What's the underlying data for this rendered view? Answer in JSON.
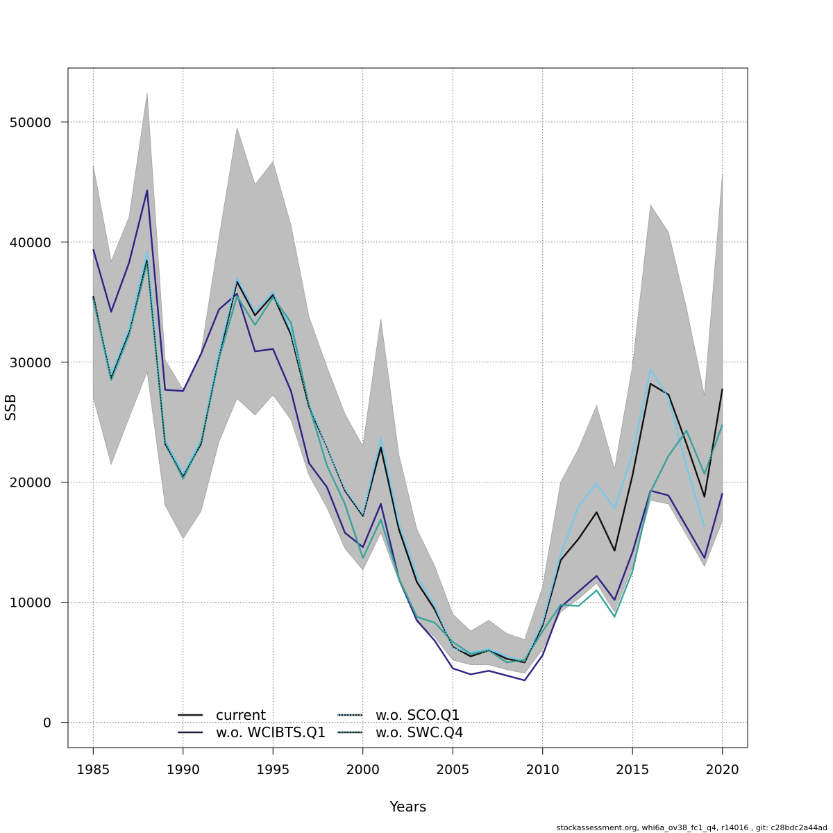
{
  "chart_data": {
    "type": "line",
    "title": "",
    "xlabel": "Years",
    "ylabel": "SSB",
    "xlim": [
      1983.6,
      2021.4
    ],
    "ylim": [
      -2100,
      54500
    ],
    "xticks": [
      1985,
      1990,
      1995,
      2000,
      2005,
      2010,
      2015,
      2020
    ],
    "yticks": [
      0,
      10000,
      20000,
      30000,
      40000,
      50000
    ],
    "grid": true,
    "legend_position": "bottom-center",
    "x": [
      1985,
      1986,
      1987,
      1988,
      1989,
      1990,
      1991,
      1992,
      1993,
      1994,
      1995,
      1996,
      1997,
      1998,
      1999,
      2000,
      2001,
      2002,
      2003,
      2004,
      2005,
      2006,
      2007,
      2008,
      2009,
      2010,
      2011,
      2012,
      2013,
      2014,
      2015,
      2016,
      2017,
      2018,
      2019,
      2020
    ],
    "band": {
      "color": "#bebebe",
      "upper": [
        46400,
        38400,
        42100,
        52400,
        30200,
        27700,
        30800,
        40400,
        49500,
        44800,
        46700,
        41400,
        33800,
        29600,
        25700,
        23000,
        33600,
        22300,
        16100,
        13000,
        9000,
        7600,
        8500,
        7400,
        6900,
        11300,
        20000,
        22800,
        26400,
        21100,
        29700,
        43100,
        40800,
        34500,
        27200,
        45700
      ],
      "lower": [
        27100,
        21500,
        25400,
        29200,
        18100,
        15300,
        17600,
        23400,
        27000,
        25600,
        27300,
        25200,
        20600,
        17900,
        14500,
        12700,
        15800,
        11800,
        8400,
        7100,
        5200,
        4800,
        4800,
        4400,
        4100,
        6100,
        9200,
        10300,
        11600,
        9200,
        13000,
        18500,
        18200,
        15600,
        13000,
        16800
      ]
    },
    "series": [
      {
        "name": "current",
        "color": "#1a1a1a",
        "dash": "",
        "width": 2.4,
        "values": [
          35500,
          28700,
          32500,
          38500,
          23200,
          20500,
          23200,
          30500,
          36700,
          33900,
          35600,
          32300,
          26300,
          22900,
          19300,
          17200,
          22900,
          16100,
          11700,
          9400,
          6300,
          5500,
          6000,
          5300,
          5000,
          8100,
          13500,
          15300,
          17500,
          14300,
          20600,
          28200,
          27300,
          23200,
          18800,
          27800
        ]
      },
      {
        "name": "w.o. WCIBTS.Q1",
        "color": "#2d2484",
        "dash": "",
        "width": 2.4,
        "values": [
          39400,
          34200,
          38300,
          44300,
          27700,
          27600,
          30700,
          34400,
          35700,
          30900,
          31100,
          27600,
          21600,
          19600,
          15800,
          14600,
          18200,
          12000,
          8500,
          6800,
          4500,
          4000,
          4300,
          3900,
          3500,
          5600,
          9600,
          10900,
          12200,
          10200,
          14200,
          19300,
          18900,
          16300,
          13700,
          19100
        ]
      },
      {
        "name": "w.o. SCO.Q1",
        "color": "#78c8e8",
        "dash": "",
        "width": 2.4,
        "values": [
          35300,
          29000,
          32800,
          39200,
          23500,
          20700,
          23500,
          30800,
          37000,
          34200,
          35900,
          32600,
          26500,
          22900,
          19400,
          17300,
          23700,
          16600,
          12200,
          9700,
          6200,
          5800,
          6100,
          5500,
          5100,
          8300,
          14000,
          18000,
          19900,
          17800,
          22400,
          29400,
          27000,
          21300,
          16300,
          null
        ]
      },
      {
        "name": "w.o. SWC.Q4",
        "color": "#3aa39a",
        "dash": "",
        "width": 2.4,
        "values": [
          35300,
          28500,
          32300,
          38300,
          23300,
          20300,
          23300,
          30300,
          35500,
          33100,
          35400,
          33300,
          26400,
          21400,
          18200,
          13700,
          16900,
          12000,
          8800,
          8300,
          6700,
          5700,
          6000,
          5000,
          5200,
          7600,
          9800,
          9700,
          11000,
          8800,
          12600,
          19200,
          22200,
          24300,
          20700,
          24800
        ]
      }
    ],
    "legend": [
      {
        "label": "current",
        "color": "#1a1a1a",
        "dot_color": "#1a1a1a"
      },
      {
        "label": "w.o. WCIBTS.Q1",
        "color": "#1a1a1a",
        "dot_color": "#2d2484"
      },
      {
        "label": "w.o. SCO.Q1",
        "color": "#1a1a1a",
        "dot_color": "#78c8e8"
      },
      {
        "label": "w.o. SWC.Q4",
        "color": "#1a1a1a",
        "dot_color": "#3aa39a"
      }
    ]
  },
  "footer": "stockassessment.org, whi6a_ov38_fc1_q4, r14016 , git: c28bdc2a44ad"
}
